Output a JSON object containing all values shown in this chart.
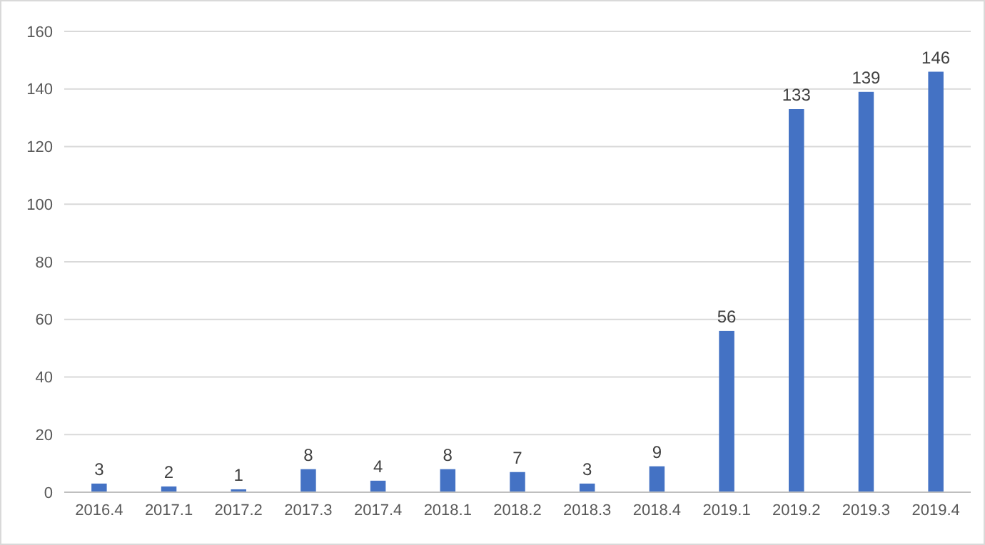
{
  "chart_data": {
    "type": "bar",
    "categories": [
      "2016.4",
      "2017.1",
      "2017.2",
      "2017.3",
      "2017.4",
      "2018.1",
      "2018.2",
      "2018.3",
      "2018.4",
      "2019.1",
      "2019.2",
      "2019.3",
      "2019.4"
    ],
    "values": [
      3,
      2,
      1,
      8,
      4,
      8,
      7,
      3,
      9,
      56,
      133,
      139,
      146
    ],
    "color": "#4472c4",
    "ylim": [
      0,
      160
    ],
    "yticks": [
      0,
      20,
      40,
      60,
      80,
      100,
      120,
      140,
      160
    ],
    "grid": "y",
    "data_labels": true
  }
}
